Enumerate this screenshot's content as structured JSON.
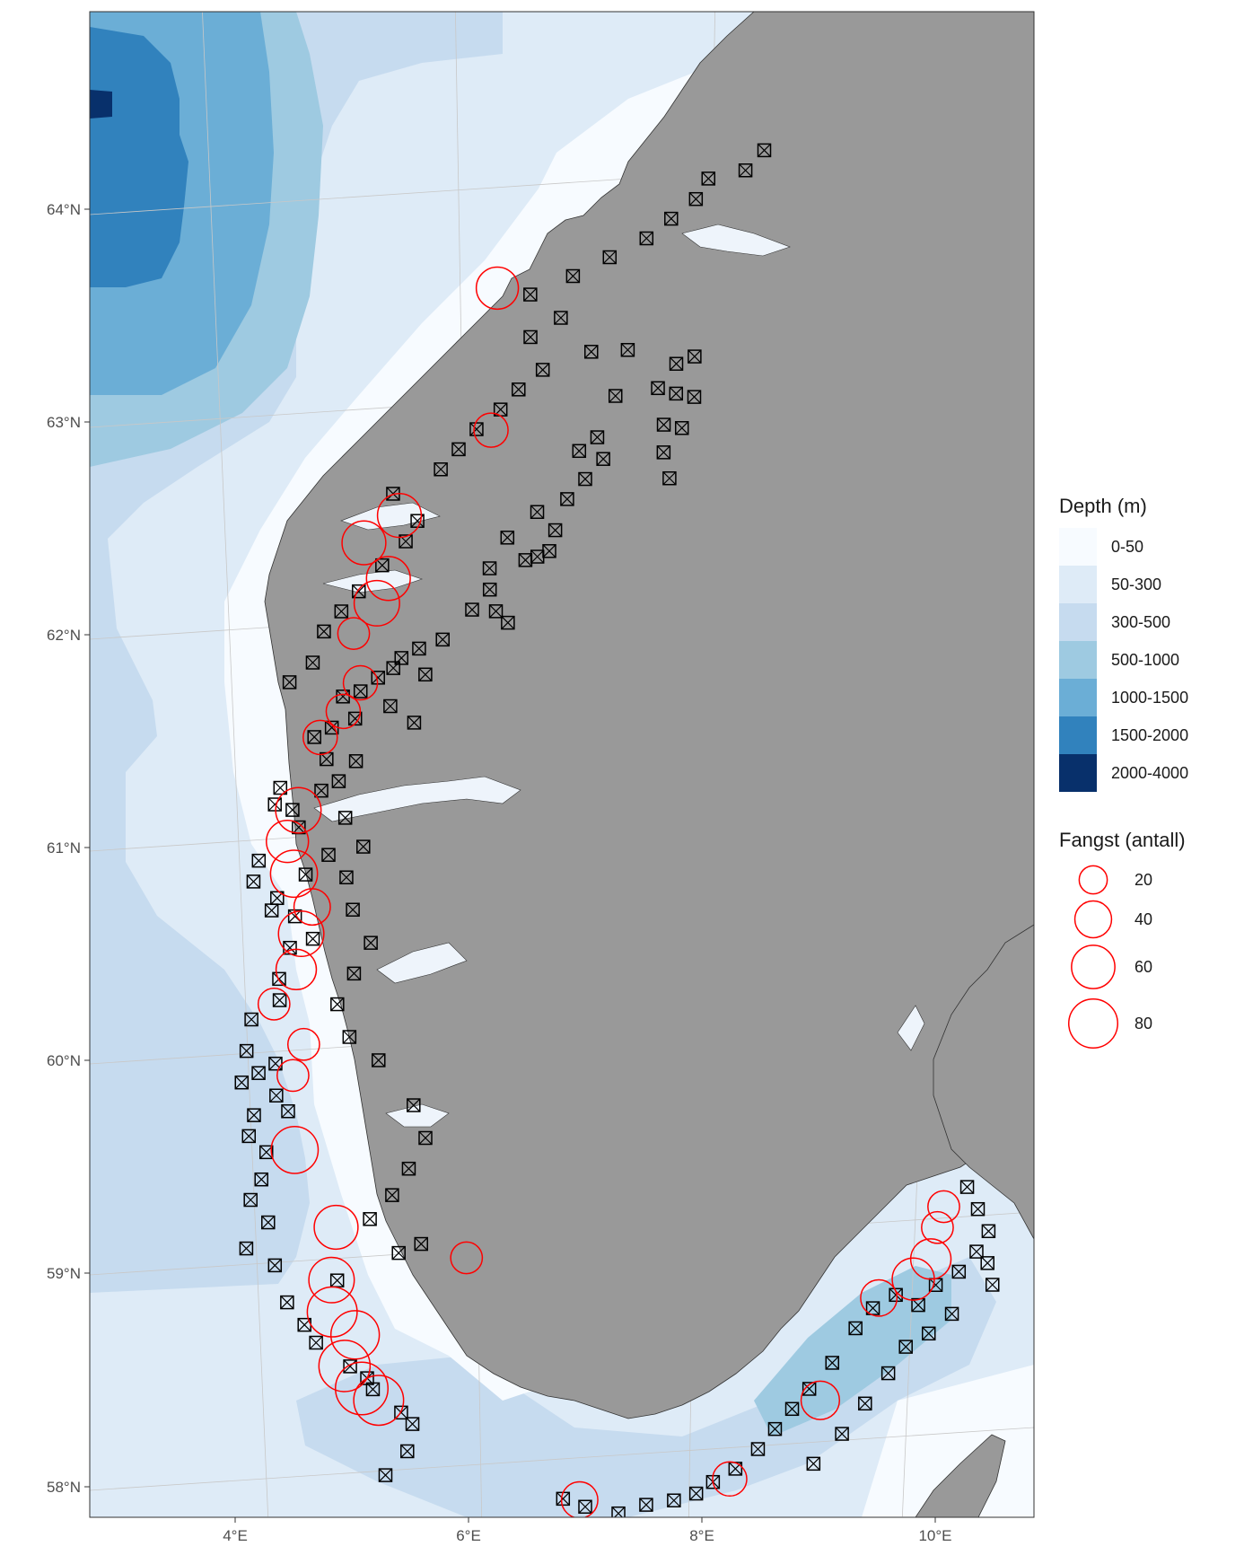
{
  "map": {
    "axes": {
      "lat_ticks": [
        "58°N",
        "59°N",
        "60°N",
        "61°N",
        "62°N",
        "63°N",
        "64°N"
      ],
      "lon_ticks": [
        "4°E",
        "6°E",
        "8°E",
        "10°E"
      ]
    },
    "colors": {
      "land": "#999999",
      "panel_border": "#333333",
      "gridline": "#c8c8c8",
      "station_marker": "#000000",
      "catch_circle": "#ff0000"
    },
    "legend_depth": {
      "title": "Depth (m)",
      "items": [
        {
          "label": "0-50",
          "color": "#f7fbff"
        },
        {
          "label": "50-300",
          "color": "#deebf7"
        },
        {
          "label": "300-500",
          "color": "#c6dbef"
        },
        {
          "label": "500-1000",
          "color": "#9ecae1"
        },
        {
          "label": "1000-1500",
          "color": "#6baed6"
        },
        {
          "label": "1500-2000",
          "color": "#3182bd"
        },
        {
          "label": "2000-4000",
          "color": "#08306b"
        }
      ]
    },
    "legend_catch": {
      "title": "Fangst (antall)",
      "items": [
        {
          "label": "20",
          "value": 20
        },
        {
          "label": "40",
          "value": 40
        },
        {
          "label": "60",
          "value": 60
        },
        {
          "label": "80",
          "value": 80
        }
      ]
    },
    "station_locations": [
      [
        63.45,
        7.05
      ],
      [
        63.47,
        7.35
      ],
      [
        63.42,
        7.75
      ],
      [
        63.46,
        7.9
      ],
      [
        63.3,
        7.6
      ],
      [
        63.28,
        7.75
      ],
      [
        63.27,
        7.9
      ],
      [
        63.25,
        7.25
      ],
      [
        63.13,
        7.65
      ],
      [
        63.12,
        7.8
      ],
      [
        63.0,
        7.65
      ],
      [
        62.88,
        7.7
      ],
      [
        63.05,
        7.1
      ],
      [
        62.95,
        7.15
      ],
      [
        62.98,
        6.95
      ],
      [
        62.85,
        7.0
      ],
      [
        62.75,
        6.85
      ],
      [
        62.68,
        6.6
      ],
      [
        62.6,
        6.75
      ],
      [
        62.5,
        6.7
      ],
      [
        62.45,
        6.5
      ],
      [
        62.47,
        6.6
      ],
      [
        62.55,
        6.35
      ],
      [
        62.4,
        6.2
      ],
      [
        62.3,
        6.2
      ],
      [
        62.2,
        6.05
      ],
      [
        62.2,
        6.25
      ],
      [
        62.15,
        6.35
      ],
      [
        62.05,
        5.8
      ],
      [
        62.0,
        5.6
      ],
      [
        61.95,
        5.45
      ],
      [
        61.88,
        5.65
      ],
      [
        61.9,
        5.38
      ],
      [
        61.85,
        5.25
      ],
      [
        61.78,
        5.1
      ],
      [
        61.72,
        5.35
      ],
      [
        61.65,
        5.55
      ],
      [
        61.8,
        4.5
      ],
      [
        61.6,
        4.85
      ],
      [
        61.55,
        4.7
      ],
      [
        61.45,
        4.8
      ],
      [
        61.35,
        4.9
      ],
      [
        61.3,
        4.4
      ],
      [
        61.22,
        4.35
      ],
      [
        61.2,
        4.5
      ],
      [
        61.12,
        4.55
      ],
      [
        61.0,
        4.8
      ],
      [
        60.9,
        4.6
      ],
      [
        60.95,
        4.2
      ],
      [
        60.85,
        4.15
      ],
      [
        60.78,
        4.35
      ],
      [
        60.72,
        4.3
      ],
      [
        60.7,
        4.5
      ],
      [
        60.6,
        4.65
      ],
      [
        60.55,
        4.45
      ],
      [
        60.4,
        4.35
      ],
      [
        60.3,
        4.35
      ],
      [
        60.2,
        4.1
      ],
      [
        60.05,
        4.05
      ],
      [
        59.95,
        4.15
      ],
      [
        60.0,
        4.3
      ],
      [
        59.85,
        4.3
      ],
      [
        59.78,
        4.4
      ],
      [
        59.9,
        4.0
      ],
      [
        59.75,
        4.1
      ],
      [
        59.65,
        4.05
      ],
      [
        59.58,
        4.2
      ],
      [
        59.45,
        4.15
      ],
      [
        59.35,
        4.05
      ],
      [
        59.25,
        4.2
      ],
      [
        59.12,
        4.0
      ],
      [
        59.05,
        4.25
      ],
      [
        58.88,
        4.35
      ],
      [
        58.78,
        4.5
      ],
      [
        58.7,
        4.6
      ],
      [
        58.6,
        4.9
      ],
      [
        58.55,
        5.05
      ],
      [
        58.5,
        5.1
      ],
      [
        58.4,
        5.35
      ],
      [
        58.35,
        5.45
      ],
      [
        58.22,
        5.4
      ],
      [
        58.1,
        5.2
      ],
      [
        59.0,
        4.8
      ],
      [
        59.15,
        5.35
      ],
      [
        59.2,
        5.55
      ],
      [
        59.3,
        5.1
      ],
      [
        59.42,
        5.3
      ],
      [
        59.55,
        5.45
      ],
      [
        59.7,
        5.6
      ],
      [
        59.85,
        5.5
      ],
      [
        60.05,
        5.2
      ],
      [
        60.15,
        4.95
      ],
      [
        60.3,
        4.85
      ],
      [
        60.45,
        5.0
      ],
      [
        60.6,
        5.15
      ],
      [
        60.75,
        5.0
      ],
      [
        60.9,
        4.95
      ],
      [
        61.05,
        5.1
      ],
      [
        61.18,
        4.95
      ],
      [
        61.3,
        4.75
      ],
      [
        61.45,
        5.05
      ],
      [
        61.65,
        5.05
      ],
      [
        61.75,
        4.95
      ],
      [
        61.9,
        4.7
      ],
      [
        62.05,
        4.8
      ],
      [
        62.15,
        4.95
      ],
      [
        62.25,
        5.1
      ],
      [
        62.38,
        5.3
      ],
      [
        62.5,
        5.5
      ],
      [
        62.6,
        5.6
      ],
      [
        62.72,
        5.4
      ],
      [
        62.85,
        5.8
      ],
      [
        62.95,
        5.95
      ],
      [
        63.05,
        6.1
      ],
      [
        63.15,
        6.3
      ],
      [
        63.25,
        6.45
      ],
      [
        63.35,
        6.65
      ],
      [
        63.5,
        6.55
      ],
      [
        63.6,
        6.8
      ],
      [
        63.7,
        6.55
      ],
      [
        63.8,
        6.9
      ],
      [
        63.9,
        7.2
      ],
      [
        64.0,
        7.5
      ],
      [
        64.1,
        7.7
      ],
      [
        64.2,
        7.9
      ],
      [
        64.3,
        8.0
      ],
      [
        64.35,
        8.3
      ],
      [
        64.45,
        8.45
      ],
      [
        58.05,
        6.8
      ],
      [
        58.02,
        7.0
      ],
      [
        58.0,
        7.3
      ],
      [
        58.05,
        7.55
      ],
      [
        58.08,
        7.8
      ],
      [
        58.12,
        8.0
      ],
      [
        58.18,
        8.15
      ],
      [
        58.25,
        8.35
      ],
      [
        58.35,
        8.55
      ],
      [
        58.45,
        8.7
      ],
      [
        58.55,
        8.85
      ],
      [
        58.65,
        9.0
      ],
      [
        58.78,
        9.2
      ],
      [
        58.95,
        9.4
      ],
      [
        59.05,
        9.55
      ],
      [
        59.12,
        9.75
      ],
      [
        59.08,
        9.95
      ],
      [
        59.18,
        10.1
      ],
      [
        59.25,
        10.3
      ],
      [
        59.35,
        10.45
      ],
      [
        59.45,
        10.55
      ],
      [
        59.55,
        10.45
      ],
      [
        59.65,
        10.35
      ],
      [
        59.3,
        10.55
      ],
      [
        59.2,
        10.6
      ],
      [
        59.05,
        10.25
      ],
      [
        58.95,
        10.05
      ],
      [
        58.88,
        9.85
      ],
      [
        58.75,
        9.7
      ],
      [
        58.6,
        9.5
      ],
      [
        58.45,
        9.3
      ],
      [
        58.3,
        9.05
      ]
    ],
    "catch_circles": [
      [
        63.72,
        6.28,
        45
      ],
      [
        63.05,
        6.22,
        25
      ],
      [
        62.62,
        5.45,
        50
      ],
      [
        62.48,
        5.15,
        50
      ],
      [
        62.32,
        5.35,
        50
      ],
      [
        62.2,
        5.25,
        55
      ],
      [
        61.82,
        5.1,
        25
      ],
      [
        61.55,
        4.75,
        25
      ],
      [
        61.2,
        4.55,
        55
      ],
      [
        61.05,
        4.45,
        45
      ],
      [
        60.9,
        4.5,
        60
      ],
      [
        60.75,
        4.65,
        30
      ],
      [
        60.62,
        4.55,
        55
      ],
      [
        60.45,
        4.5,
        40
      ],
      [
        60.28,
        4.3,
        20
      ],
      [
        59.95,
        4.45,
        20
      ],
      [
        59.6,
        4.45,
        60
      ],
      [
        59.25,
        4.8,
        50
      ],
      [
        59.0,
        4.75,
        55
      ],
      [
        58.85,
        4.75,
        70
      ],
      [
        58.75,
        4.95,
        65
      ],
      [
        58.6,
        4.85,
        75
      ],
      [
        58.5,
        5.0,
        80
      ],
      [
        58.45,
        5.15,
        70
      ],
      [
        59.15,
        5.95,
        20
      ],
      [
        58.05,
        6.95,
        30
      ],
      [
        58.2,
        8.3,
        25
      ],
      [
        58.6,
        9.1,
        35
      ],
      [
        59.1,
        9.6,
        30
      ],
      [
        59.2,
        9.9,
        45
      ],
      [
        59.3,
        10.05,
        40
      ],
      [
        59.45,
        10.1,
        20
      ],
      [
        59.55,
        10.15,
        20
      ],
      [
        60.1,
        4.55,
        20
      ],
      [
        62.05,
        5.05,
        20
      ],
      [
        61.68,
        4.95,
        25
      ]
    ]
  }
}
